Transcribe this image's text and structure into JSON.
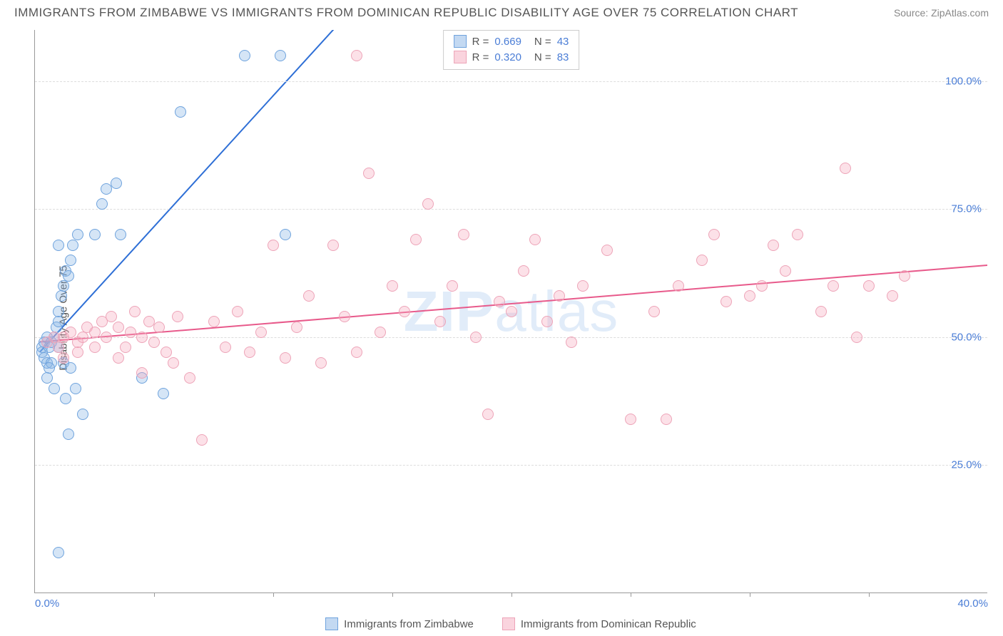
{
  "title": "IMMIGRANTS FROM ZIMBABWE VS IMMIGRANTS FROM DOMINICAN REPUBLIC DISABILITY AGE OVER 75 CORRELATION CHART",
  "source": "Source: ZipAtlas.com",
  "ylabel": "Disability Age Over 75",
  "watermark_a": "ZIP",
  "watermark_b": "atlas",
  "chart": {
    "type": "scatter",
    "xlim": [
      0,
      40
    ],
    "ylim": [
      0,
      110
    ],
    "xtick_labels": [
      "0.0%",
      "40.0%"
    ],
    "xtick_label_positions": [
      0,
      40
    ],
    "xtick_marks": [
      5,
      10,
      15,
      20,
      25,
      30,
      35
    ],
    "ytick_labels": [
      "25.0%",
      "50.0%",
      "75.0%",
      "100.0%"
    ],
    "ytick_positions": [
      25,
      50,
      75,
      100
    ],
    "grid_color": "#dddddd",
    "background_color": "#ffffff",
    "point_radius": 8,
    "series": [
      {
        "name": "Immigrants from Zimbabwe",
        "key": "blue",
        "color_fill": "rgba(135,180,230,0.35)",
        "color_stroke": "#6fa3dd",
        "trend_color": "#2e6fd6",
        "trend_width": 2,
        "trend_p1": [
          0.2,
          47
        ],
        "trend_p2": [
          13.5,
          115
        ],
        "R": "0.669",
        "N": "43",
        "points": [
          [
            0.3,
            48
          ],
          [
            0.4,
            49
          ],
          [
            0.5,
            50
          ],
          [
            0.3,
            47
          ],
          [
            0.6,
            48
          ],
          [
            0.7,
            49
          ],
          [
            0.4,
            46
          ],
          [
            0.5,
            45
          ],
          [
            0.8,
            50
          ],
          [
            0.9,
            52
          ],
          [
            1.0,
            55
          ],
          [
            1.1,
            58
          ],
          [
            0.7,
            45
          ],
          [
            0.6,
            44
          ],
          [
            0.5,
            42
          ],
          [
            0.8,
            40
          ],
          [
            1.2,
            60
          ],
          [
            1.3,
            63
          ],
          [
            1.0,
            53
          ],
          [
            1.5,
            65
          ],
          [
            1.6,
            68
          ],
          [
            1.8,
            70
          ],
          [
            1.4,
            62
          ],
          [
            1.0,
            48
          ],
          [
            1.2,
            45
          ],
          [
            1.5,
            44
          ],
          [
            1.7,
            40
          ],
          [
            1.3,
            38
          ],
          [
            2.0,
            35
          ],
          [
            1.4,
            31
          ],
          [
            2.5,
            70
          ],
          [
            2.8,
            76
          ],
          [
            3.0,
            79
          ],
          [
            3.4,
            80
          ],
          [
            3.6,
            70
          ],
          [
            4.5,
            42
          ],
          [
            5.4,
            39
          ],
          [
            6.1,
            94
          ],
          [
            8.8,
            105
          ],
          [
            10.3,
            105
          ],
          [
            10.5,
            70
          ],
          [
            1.0,
            68
          ],
          [
            1.0,
            8
          ]
        ]
      },
      {
        "name": "Immigrants from Dominican Republic",
        "key": "pink",
        "color_fill": "rgba(245,170,190,0.35)",
        "color_stroke": "#eda4b8",
        "trend_color": "#e85a8b",
        "trend_width": 2,
        "trend_p1": [
          0.2,
          49
        ],
        "trend_p2": [
          40,
          64
        ],
        "R": "0.320",
        "N": "83",
        "points": [
          [
            0.5,
            49
          ],
          [
            0.8,
            50
          ],
          [
            1.0,
            48
          ],
          [
            1.2,
            50
          ],
          [
            1.5,
            51
          ],
          [
            1.8,
            49
          ],
          [
            2.0,
            50
          ],
          [
            2.2,
            52
          ],
          [
            2.5,
            51
          ],
          [
            2.8,
            53
          ],
          [
            3.0,
            50
          ],
          [
            3.2,
            54
          ],
          [
            3.5,
            52
          ],
          [
            3.8,
            48
          ],
          [
            4.0,
            51
          ],
          [
            4.2,
            55
          ],
          [
            4.5,
            50
          ],
          [
            4.8,
            53
          ],
          [
            5.0,
            49
          ],
          [
            5.2,
            52
          ],
          [
            5.5,
            47
          ],
          [
            5.8,
            45
          ],
          [
            6.0,
            54
          ],
          [
            6.5,
            42
          ],
          [
            7.0,
            30
          ],
          [
            7.5,
            53
          ],
          [
            8.0,
            48
          ],
          [
            8.5,
            55
          ],
          [
            9.0,
            47
          ],
          [
            9.5,
            51
          ],
          [
            10.0,
            68
          ],
          [
            10.5,
            46
          ],
          [
            11.0,
            52
          ],
          [
            11.5,
            58
          ],
          [
            12.0,
            45
          ],
          [
            12.5,
            68
          ],
          [
            13.0,
            54
          ],
          [
            13.5,
            47
          ],
          [
            14.0,
            82
          ],
          [
            14.5,
            51
          ],
          [
            15.0,
            60
          ],
          [
            15.5,
            55
          ],
          [
            16.0,
            69
          ],
          [
            16.5,
            76
          ],
          [
            17.0,
            53
          ],
          [
            17.5,
            60
          ],
          [
            18.0,
            70
          ],
          [
            18.5,
            50
          ],
          [
            19.0,
            35
          ],
          [
            19.5,
            57
          ],
          [
            20.0,
            55
          ],
          [
            20.5,
            63
          ],
          [
            21.0,
            69
          ],
          [
            21.5,
            53
          ],
          [
            22.0,
            58
          ],
          [
            22.5,
            49
          ],
          [
            23.0,
            60
          ],
          [
            24.0,
            67
          ],
          [
            25.0,
            34
          ],
          [
            26.0,
            55
          ],
          [
            26.5,
            34
          ],
          [
            27.0,
            60
          ],
          [
            28.0,
            65
          ],
          [
            28.5,
            70
          ],
          [
            29.0,
            57
          ],
          [
            30.0,
            58
          ],
          [
            30.5,
            60
          ],
          [
            31.0,
            68
          ],
          [
            31.5,
            63
          ],
          [
            32.0,
            70
          ],
          [
            33.0,
            55
          ],
          [
            33.5,
            60
          ],
          [
            34.0,
            83
          ],
          [
            34.5,
            50
          ],
          [
            35.0,
            60
          ],
          [
            36.0,
            58
          ],
          [
            36.5,
            62
          ],
          [
            13.5,
            105
          ],
          [
            2.5,
            48
          ],
          [
            3.5,
            46
          ],
          [
            4.5,
            43
          ],
          [
            1.8,
            47
          ],
          [
            1.2,
            46
          ]
        ]
      }
    ]
  },
  "legend": {
    "series1_label": "Immigrants from Zimbabwe",
    "series2_label": "Immigrants from Dominican Republic"
  }
}
